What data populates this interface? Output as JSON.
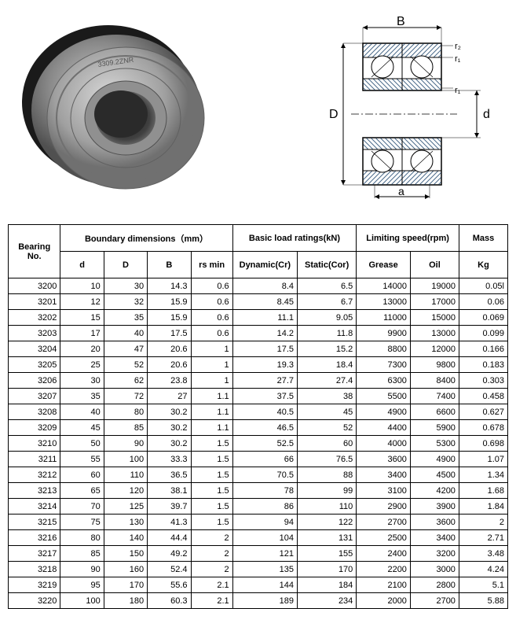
{
  "diagram": {
    "labels": {
      "B": "B",
      "D": "D",
      "d": "d",
      "a": "a",
      "r1": "r₁",
      "r2": "r₂"
    },
    "line_color": "#000000",
    "hatch_color": "#4a6a8a",
    "text_color": "#000000"
  },
  "bearing_photo": {
    "label": "3309.2ZNR",
    "outer_color": "#808080",
    "inner_color": "#a8a8a8",
    "bore_color": "#404040"
  },
  "table": {
    "headers": {
      "bearing_no": "Bearing No.",
      "boundary": "Boundary dimensions（mm）",
      "load": "Basic load ratings(kN)",
      "speed": "Limiting speed(rpm)",
      "mass": "Mass",
      "d": "d",
      "D": "D",
      "B": "B",
      "rsmin": "rs min",
      "dynamic": "Dynamic(Cr)",
      "static": "Static(Cor)",
      "grease": "Grease",
      "oil": "Oil",
      "kg": "Kg"
    },
    "col_widths": [
      "60",
      "50",
      "50",
      "50",
      "48",
      "68",
      "68",
      "62",
      "56",
      "56"
    ],
    "rows": [
      [
        "3200",
        "10",
        "30",
        "14.3",
        "0.6",
        "8.4",
        "6.5",
        "14000",
        "19000",
        "0.05l"
      ],
      [
        "3201",
        "12",
        "32",
        "15.9",
        "0.6",
        "8.45",
        "6.7",
        "13000",
        "17000",
        "0.06"
      ],
      [
        "3202",
        "15",
        "35",
        "15.9",
        "0.6",
        "11.1",
        "9.05",
        "11000",
        "15000",
        "0.069"
      ],
      [
        "3203",
        "17",
        "40",
        "17.5",
        "0.6",
        "14.2",
        "11.8",
        "9900",
        "13000",
        "0.099"
      ],
      [
        "3204",
        "20",
        "47",
        "20.6",
        "1",
        "17.5",
        "15.2",
        "8800",
        "12000",
        "0.166"
      ],
      [
        "3205",
        "25",
        "52",
        "20.6",
        "1",
        "19.3",
        "18.4",
        "7300",
        "9800",
        "0.183"
      ],
      [
        "3206",
        "30",
        "62",
        "23.8",
        "1",
        "27.7",
        "27.4",
        "6300",
        "8400",
        "0.303"
      ],
      [
        "3207",
        "35",
        "72",
        "27",
        "1.1",
        "37.5",
        "38",
        "5500",
        "7400",
        "0.458"
      ],
      [
        "3208",
        "40",
        "80",
        "30.2",
        "1.1",
        "40.5",
        "45",
        "4900",
        "6600",
        "0.627"
      ],
      [
        "3209",
        "45",
        "85",
        "30.2",
        "1.1",
        "46.5",
        "52",
        "4400",
        "5900",
        "0.678"
      ],
      [
        "3210",
        "50",
        "90",
        "30.2",
        "1.5",
        "52.5",
        "60",
        "4000",
        "5300",
        "0.698"
      ],
      [
        "3211",
        "55",
        "100",
        "33.3",
        "1.5",
        "66",
        "76.5",
        "3600",
        "4900",
        "1.07"
      ],
      [
        "3212",
        "60",
        "110",
        "36.5",
        "1.5",
        "70.5",
        "88",
        "3400",
        "4500",
        "1.34"
      ],
      [
        "3213",
        "65",
        "120",
        "38.1",
        "1.5",
        "78",
        "99",
        "3100",
        "4200",
        "1.68"
      ],
      [
        "3214",
        "70",
        "125",
        "39.7",
        "1.5",
        "86",
        "110",
        "2900",
        "3900",
        "1.84"
      ],
      [
        "3215",
        "75",
        "130",
        "41.3",
        "1.5",
        "94",
        "122",
        "2700",
        "3600",
        "2"
      ],
      [
        "3216",
        "80",
        "140",
        "44.4",
        "2",
        "104",
        "131",
        "2500",
        "3400",
        "2.71"
      ],
      [
        "3217",
        "85",
        "150",
        "49.2",
        "2",
        "121",
        "155",
        "2400",
        "3200",
        "3.48"
      ],
      [
        "3218",
        "90",
        "160",
        "52.4",
        "2",
        "135",
        "170",
        "2200",
        "3000",
        "4.24"
      ],
      [
        "3219",
        "95",
        "170",
        "55.6",
        "2.1",
        "144",
        "184",
        "2100",
        "2800",
        "5.1"
      ],
      [
        "3220",
        "100",
        "180",
        "60.3",
        "2.1",
        "189",
        "234",
        "2000",
        "2700",
        "5.88"
      ]
    ]
  }
}
